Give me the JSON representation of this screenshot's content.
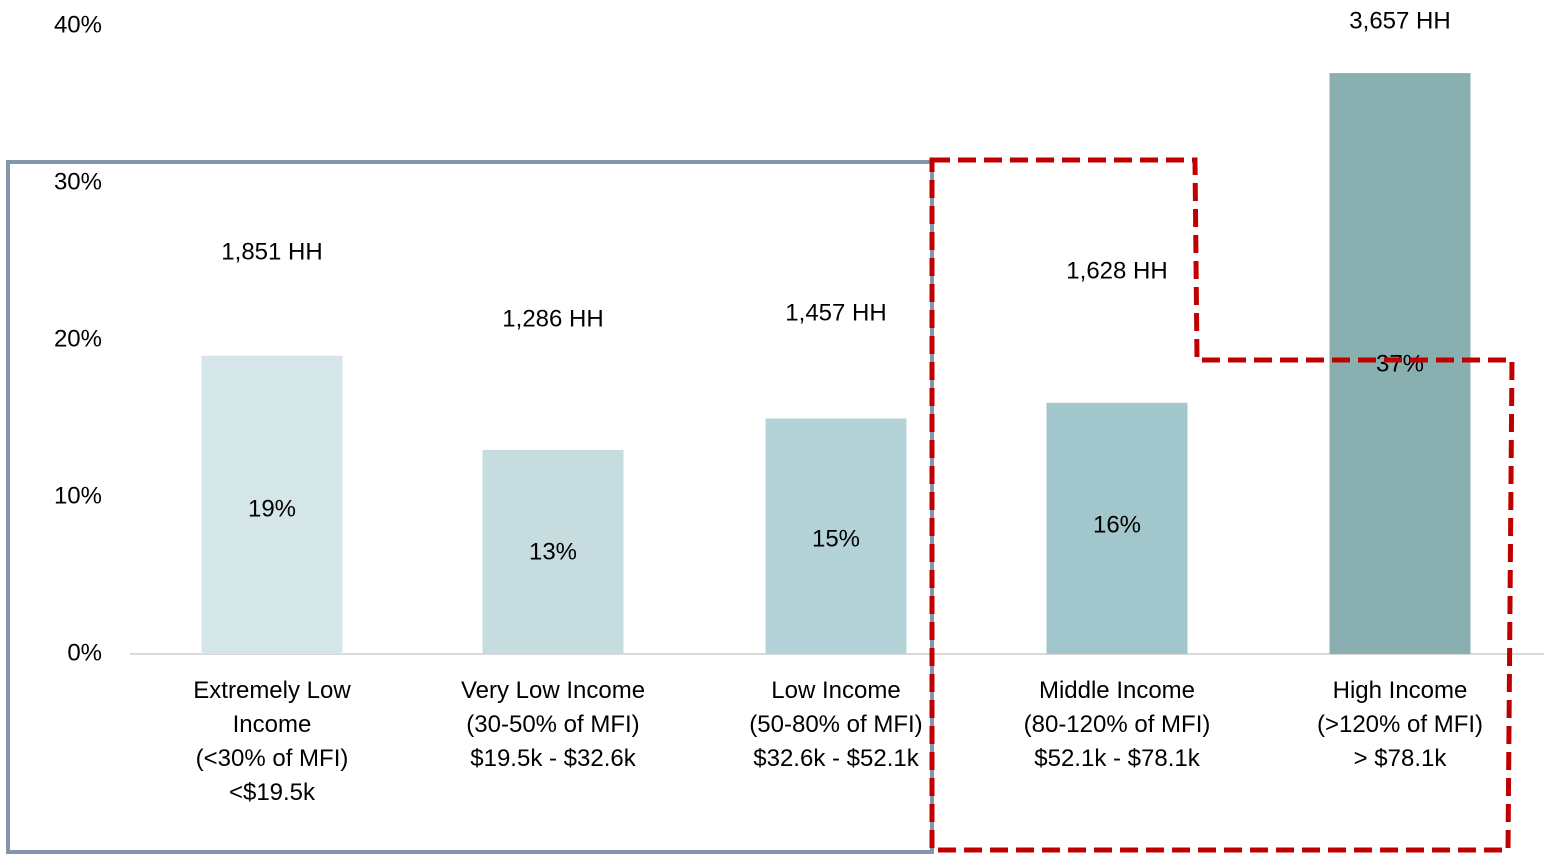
{
  "chart_data": {
    "type": "bar",
    "categories": [
      "Extremely Low\nIncome\n(<30% of MFI)\n<$19.5k",
      "Very Low Income\n(30-50% of MFI)\n$19.5k - $32.6k",
      "Low Income\n(50-80% of MFI)\n$32.6k - $52.1k",
      "Middle Income\n(80-120% of MFI)\n$52.1k - $78.1k",
      "High Income\n(>120% of MFI)\n> $78.1k"
    ],
    "values": [
      19,
      13,
      15,
      16,
      37
    ],
    "value_labels": [
      "19%",
      "13%",
      "15%",
      "16%",
      "37%"
    ],
    "annotations": [
      "1,851 HH",
      "1,286 HH",
      "1,457 HH",
      "1,628 HH",
      "3,657 HH"
    ],
    "colors": [
      "#d4e6e8",
      "#c7dcdf",
      "#b3d3d8",
      "#a1c6cb",
      "#8aafb0"
    ],
    "ylim": [
      0,
      40
    ],
    "yticks": [
      {
        "value": 0,
        "label": "0%"
      },
      {
        "value": 10,
        "label": "10%"
      },
      {
        "value": 20,
        "label": "20%"
      },
      {
        "value": 30,
        "label": "30%"
      },
      {
        "value": 40,
        "label": "40%"
      }
    ],
    "grid": false
  }
}
